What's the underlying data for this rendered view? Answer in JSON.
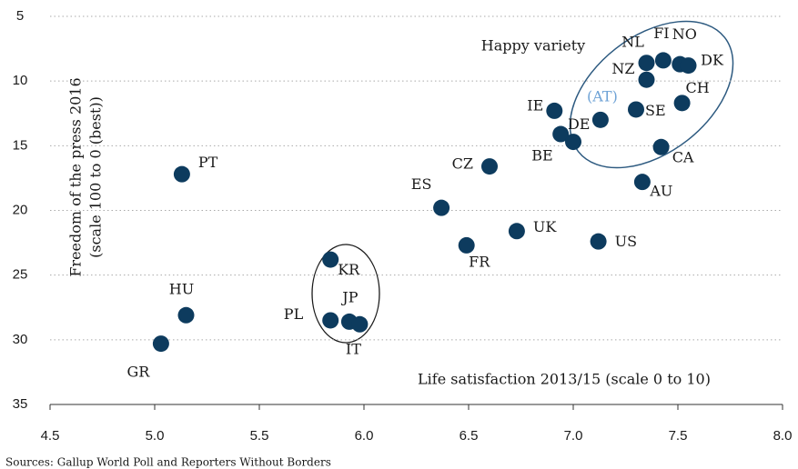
{
  "chart_data": {
    "type": "scatter",
    "x_label": "Life satisfaction 2013/15 (scale 0 to 10)",
    "y_label": [
      "Freedom of the press 2016",
      "(scale 100 to 0 (best))"
    ],
    "annotation": "Happy variety",
    "source": "Sources:  Gallup World Poll and Reporters Without Borders",
    "color": "#0d3b5e",
    "xlim": [
      4.5,
      8.0
    ],
    "ylim": [
      5,
      35
    ],
    "y_inverted": true,
    "grid": true,
    "xticks": [
      4.5,
      {
        "value": 5,
        "label": "5.0"
      },
      5.5,
      {
        "value": 6,
        "label": "6.0"
      },
      6.5,
      {
        "value": 7,
        "label": "7.0"
      },
      7.5,
      {
        "value": 8,
        "label": "8.0"
      }
    ],
    "yticks": [
      5,
      10,
      15,
      20,
      25,
      30,
      35
    ],
    "points": [
      {
        "label": "PT",
        "x": 5.13,
        "y": 17.2
      },
      {
        "label": "HU",
        "x": 5.15,
        "y": 28.1
      },
      {
        "label": "GR",
        "x": 5.03,
        "y": 30.3
      },
      {
        "label": "KR",
        "x": 5.84,
        "y": 23.8
      },
      {
        "label": "PL",
        "x": 5.84,
        "y": 28.5
      },
      {
        "label": "JP",
        "x": 5.93,
        "y": 28.6
      },
      {
        "label": "IT",
        "x": 5.98,
        "y": 28.8
      },
      {
        "label": "ES",
        "x": 6.37,
        "y": 19.8
      },
      {
        "label": "FR",
        "x": 6.49,
        "y": 22.7
      },
      {
        "label": "CZ",
        "x": 6.6,
        "y": 16.6
      },
      {
        "label": "UK",
        "x": 6.73,
        "y": 21.6
      },
      {
        "label": "IE",
        "x": 6.91,
        "y": 12.3
      },
      {
        "label": "DE",
        "x": 6.94,
        "y": 14.1
      },
      {
        "label": "BE",
        "x": 7.0,
        "y": 14.7
      },
      {
        "label": "(AT)",
        "x": 7.13,
        "y": 13.0,
        "label_color": "#6fa3d6"
      },
      {
        "label": "US",
        "x": 7.12,
        "y": 22.4
      },
      {
        "label": "SE",
        "x": 7.3,
        "y": 12.2
      },
      {
        "label": "NZ",
        "x": 7.35,
        "y": 9.9
      },
      {
        "label": "NL",
        "x": 7.35,
        "y": 8.6
      },
      {
        "label": "FI",
        "x": 7.43,
        "y": 8.4
      },
      {
        "label": "NO",
        "x": 7.51,
        "y": 8.7
      },
      {
        "label": "DK",
        "x": 7.55,
        "y": 8.8
      },
      {
        "label": "CH",
        "x": 7.52,
        "y": 11.7
      },
      {
        "label": "CA",
        "x": 7.42,
        "y": 15.1
      },
      {
        "label": "AU",
        "x": 7.33,
        "y": 17.8
      }
    ]
  }
}
